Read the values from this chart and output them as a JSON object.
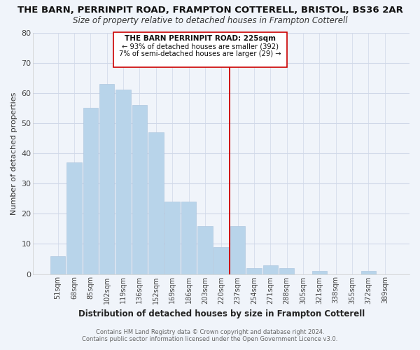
{
  "title": "THE BARN, PERRINPIT ROAD, FRAMPTON COTTERELL, BRISTOL, BS36 2AR",
  "subtitle": "Size of property relative to detached houses in Frampton Cotterell",
  "xlabel": "Distribution of detached houses by size in Frampton Cotterell",
  "ylabel": "Number of detached properties",
  "bar_labels": [
    "51sqm",
    "68sqm",
    "85sqm",
    "102sqm",
    "119sqm",
    "136sqm",
    "152sqm",
    "169sqm",
    "186sqm",
    "203sqm",
    "220sqm",
    "237sqm",
    "254sqm",
    "271sqm",
    "288sqm",
    "305sqm",
    "321sqm",
    "338sqm",
    "355sqm",
    "372sqm",
    "389sqm"
  ],
  "bar_values": [
    6,
    37,
    55,
    63,
    61,
    56,
    47,
    24,
    24,
    16,
    9,
    16,
    2,
    3,
    2,
    0,
    1,
    0,
    0,
    1,
    0
  ],
  "bar_color": "#b8d4ea",
  "bar_edge_color": "#b0c8e0",
  "grid_color": "#d0d8e8",
  "background_color": "#f0f4fa",
  "vline_color": "#cc0000",
  "annotation_title": "THE BARN PERRINPIT ROAD: 225sqm",
  "annotation_line1": "← 93% of detached houses are smaller (392)",
  "annotation_line2": "7% of semi-detached houses are larger (29) →",
  "footer1": "Contains HM Land Registry data © Crown copyright and database right 2024.",
  "footer2": "Contains public sector information licensed under the Open Government Licence v3.0.",
  "ylim": [
    0,
    80
  ],
  "yticks": [
    0,
    10,
    20,
    30,
    40,
    50,
    60,
    70,
    80
  ]
}
